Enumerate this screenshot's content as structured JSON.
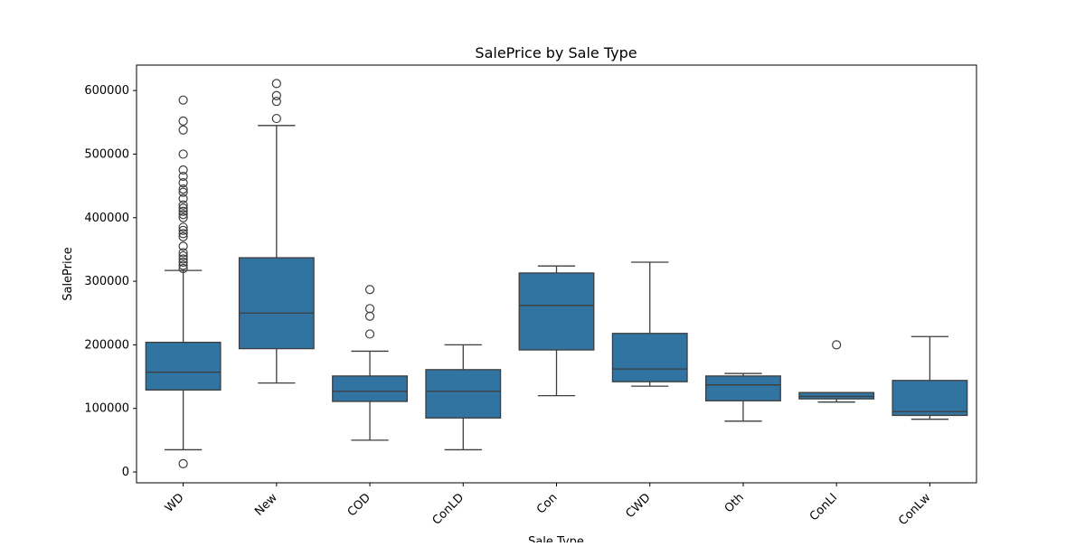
{
  "chart_data": {
    "type": "box",
    "title": "SalePrice by Sale Type",
    "xlabel": "Sale Type",
    "ylabel": "SalePrice",
    "ylim": [
      -17000,
      640000
    ],
    "yticks": [
      0,
      100000,
      200000,
      300000,
      400000,
      500000,
      600000
    ],
    "ytick_labels": [
      "0",
      "100000",
      "200000",
      "300000",
      "400000",
      "500000",
      "600000"
    ],
    "categories": [
      "WD",
      "New",
      "COD",
      "ConLD",
      "Con",
      "CWD",
      "Oth",
      "ConLI",
      "ConLw"
    ],
    "box_color": "#3274a1",
    "line_color": "#3d3d3d",
    "boxes": [
      {
        "name": "WD",
        "whisker_low": 35000,
        "q1": 129000,
        "median": 157000,
        "q3": 204000,
        "whisker_high": 317000,
        "outliers": [
          13000,
          320000,
          325000,
          330000,
          335000,
          340000,
          345000,
          355000,
          370000,
          375000,
          380000,
          385000,
          400000,
          405000,
          410000,
          415000,
          420000,
          430000,
          440000,
          445000,
          455000,
          465000,
          475000,
          500000,
          538000,
          552000,
          585000
        ]
      },
      {
        "name": "New",
        "whisker_low": 140000,
        "q1": 194000,
        "median": 250000,
        "q3": 337000,
        "whisker_high": 545000,
        "outliers": [
          556000,
          583000,
          592000,
          611000
        ]
      },
      {
        "name": "COD",
        "whisker_low": 50000,
        "q1": 111000,
        "median": 127000,
        "q3": 151000,
        "whisker_high": 190000,
        "outliers": [
          217000,
          245000,
          257000,
          287000
        ]
      },
      {
        "name": "ConLD",
        "whisker_low": 35000,
        "q1": 85000,
        "median": 127000,
        "q3": 161000,
        "whisker_high": 200000,
        "outliers": []
      },
      {
        "name": "Con",
        "whisker_low": 120000,
        "q1": 192000,
        "median": 262000,
        "q3": 313000,
        "whisker_high": 324000,
        "outliers": []
      },
      {
        "name": "CWD",
        "whisker_low": 135000,
        "q1": 142000,
        "median": 162000,
        "q3": 218000,
        "whisker_high": 330000,
        "outliers": []
      },
      {
        "name": "Oth",
        "whisker_low": 80000,
        "q1": 112000,
        "median": 137000,
        "q3": 151000,
        "whisker_high": 155000,
        "outliers": []
      },
      {
        "name": "ConLI",
        "whisker_low": 110000,
        "q1": 115000,
        "median": 119000,
        "q3": 125000,
        "whisker_high": 125000,
        "outliers": [
          200000
        ]
      },
      {
        "name": "ConLw",
        "whisker_low": 83000,
        "q1": 89000,
        "median": 95000,
        "q3": 144000,
        "whisker_high": 213000,
        "outliers": []
      }
    ]
  }
}
